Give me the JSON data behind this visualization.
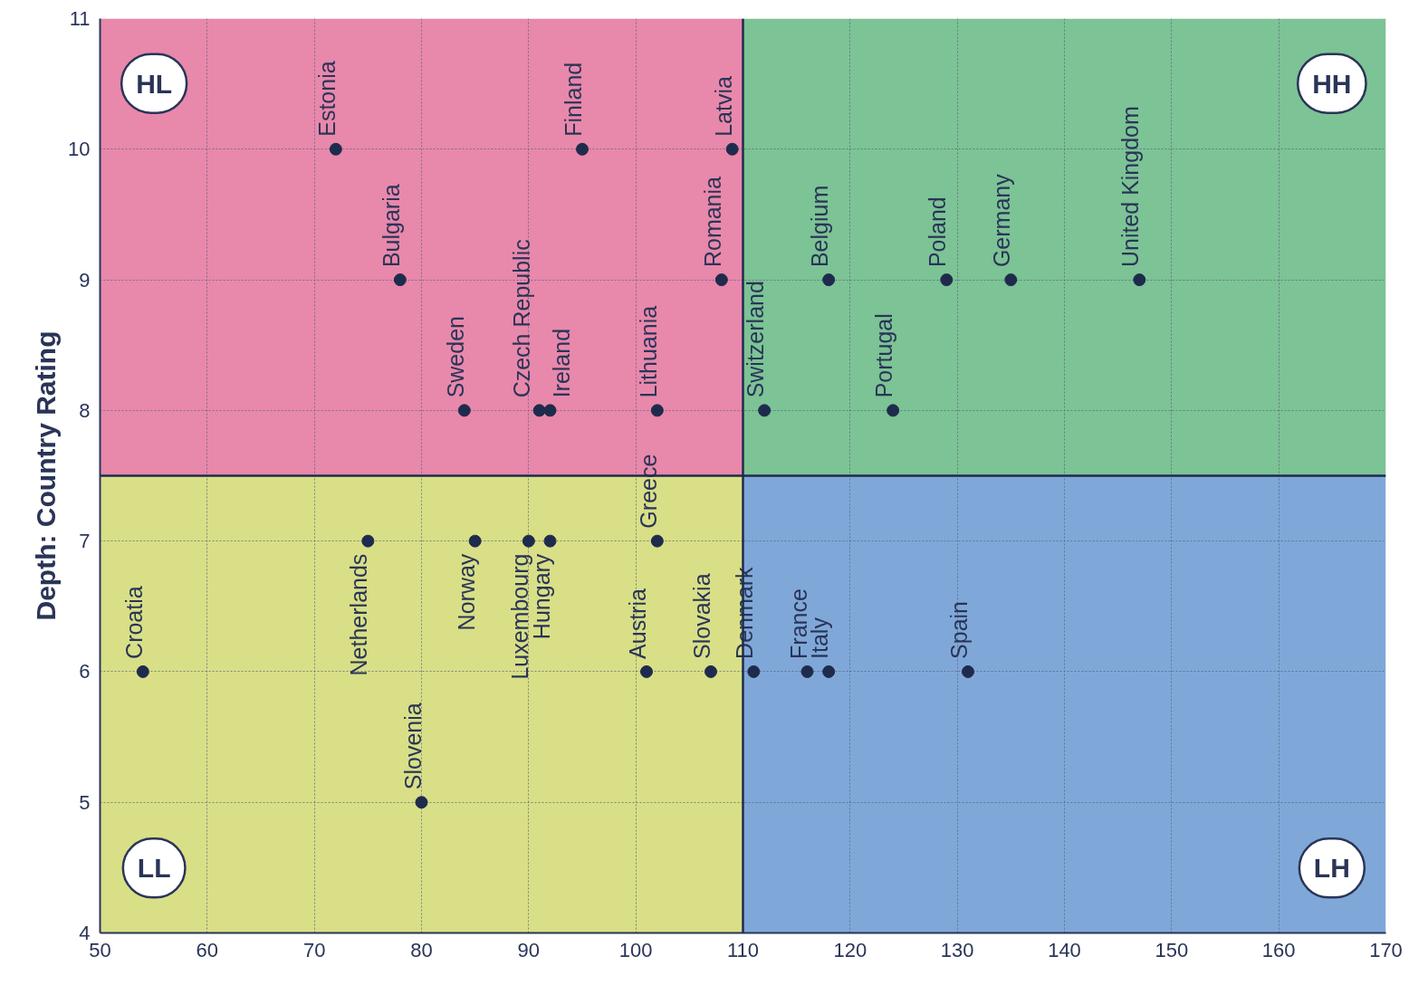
{
  "chart_data": {
    "type": "scatter",
    "ylabel": "Depth: Country Rating",
    "xlim": [
      50,
      170
    ],
    "ylim": [
      4,
      11
    ],
    "xticks": [
      50,
      60,
      70,
      80,
      90,
      100,
      110,
      120,
      130,
      140,
      150,
      160,
      170
    ],
    "yticks": [
      4,
      5,
      6,
      7,
      8,
      9,
      10,
      11
    ],
    "grid": true,
    "legend": false,
    "marker": "circle",
    "ref_lines": [
      {
        "axis": "x",
        "value": 110,
        "color": "#1f2b4d"
      },
      {
        "axis": "y",
        "value": 7.5,
        "color": "#1f2b4d"
      }
    ],
    "bands": [
      {
        "axis": "x",
        "from": 50,
        "to": 110,
        "color": "#e888ab"
      },
      {
        "axis": "x",
        "from": 110,
        "to": 170,
        "color": "#7cc395"
      },
      {
        "axis": "x",
        "from": 50,
        "to": 110,
        "color": "#d8df86"
      },
      {
        "axis": "x",
        "from": 110,
        "to": 170,
        "color": "#7fa8d8"
      }
    ],
    "annotations": [
      "HL",
      "HH",
      "LL",
      "LH"
    ],
    "series": [
      {
        "name": "Estonia",
        "color": "#1f2b4d",
        "x": [
          72
        ],
        "values": [
          10
        ]
      },
      {
        "name": "Finland",
        "color": "#1f2b4d",
        "x": [
          95
        ],
        "values": [
          10
        ]
      },
      {
        "name": "Latvia",
        "color": "#1f2b4d",
        "x": [
          109
        ],
        "values": [
          10
        ]
      },
      {
        "name": "Bulgaria",
        "color": "#1f2b4d",
        "x": [
          78
        ],
        "values": [
          9
        ]
      },
      {
        "name": "Romania",
        "color": "#1f2b4d",
        "x": [
          108
        ],
        "values": [
          9
        ]
      },
      {
        "name": "Belgium",
        "color": "#1f2b4d",
        "x": [
          118
        ],
        "values": [
          9
        ]
      },
      {
        "name": "Poland",
        "color": "#1f2b4d",
        "x": [
          129
        ],
        "values": [
          9
        ]
      },
      {
        "name": "Germany",
        "color": "#1f2b4d",
        "x": [
          135
        ],
        "values": [
          9
        ]
      },
      {
        "name": "United Kingdom",
        "color": "#1f2b4d",
        "x": [
          147
        ],
        "values": [
          9
        ]
      },
      {
        "name": "Sweden",
        "color": "#1f2b4d",
        "x": [
          84
        ],
        "values": [
          8
        ]
      },
      {
        "name": "Czech Republic",
        "color": "#1f2b4d",
        "x": [
          91
        ],
        "values": [
          8
        ]
      },
      {
        "name": "Ireland",
        "color": "#1f2b4d",
        "x": [
          92
        ],
        "values": [
          8
        ]
      },
      {
        "name": "Lithuania",
        "color": "#1f2b4d",
        "x": [
          102
        ],
        "values": [
          8
        ]
      },
      {
        "name": "Switzerland",
        "color": "#1f2b4d",
        "x": [
          112
        ],
        "values": [
          8
        ]
      },
      {
        "name": "Portugal",
        "color": "#1f2b4d",
        "x": [
          124
        ],
        "values": [
          8
        ]
      },
      {
        "name": "Netherlands",
        "color": "#1f2b4d",
        "x": [
          75
        ],
        "values": [
          7
        ]
      },
      {
        "name": "Norway",
        "color": "#1f2b4d",
        "x": [
          85
        ],
        "values": [
          7
        ]
      },
      {
        "name": "Luxembourg",
        "color": "#1f2b4d",
        "x": [
          90
        ],
        "values": [
          7
        ]
      },
      {
        "name": "Hungary",
        "color": "#1f2b4d",
        "x": [
          92
        ],
        "values": [
          7
        ]
      },
      {
        "name": "Greece",
        "color": "#1f2b4d",
        "x": [
          102
        ],
        "values": [
          7
        ]
      },
      {
        "name": "Croatia",
        "color": "#1f2b4d",
        "x": [
          54
        ],
        "values": [
          6
        ]
      },
      {
        "name": "Austria",
        "color": "#1f2b4d",
        "x": [
          101
        ],
        "values": [
          6
        ]
      },
      {
        "name": "Slovakia",
        "color": "#1f2b4d",
        "x": [
          107
        ],
        "values": [
          6
        ]
      },
      {
        "name": "Denmark",
        "color": "#1f2b4d",
        "x": [
          111
        ],
        "values": [
          6
        ]
      },
      {
        "name": "France",
        "color": "#1f2b4d",
        "x": [
          116
        ],
        "values": [
          6
        ]
      },
      {
        "name": "Italy",
        "color": "#1f2b4d",
        "x": [
          118
        ],
        "values": [
          6
        ]
      },
      {
        "name": "Spain",
        "color": "#1f2b4d",
        "x": [
          131
        ],
        "values": [
          6
        ]
      },
      {
        "name": "Slovenia",
        "color": "#1f2b4d",
        "x": [
          80
        ],
        "values": [
          5
        ]
      }
    ]
  }
}
